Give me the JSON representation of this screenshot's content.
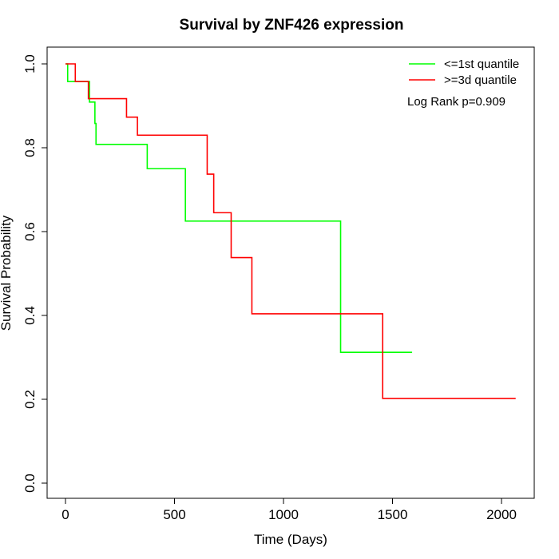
{
  "chart_data": {
    "type": "line",
    "title": "Survival by ZNF426 expression",
    "xlabel": "Time (Days)",
    "ylabel": "Survival Probability",
    "xlim": [
      0,
      2070
    ],
    "ylim": [
      0,
      1
    ],
    "x_ticks": [
      0,
      500,
      1000,
      1500,
      2000
    ],
    "y_ticks": [
      0.0,
      0.2,
      0.4,
      0.6,
      0.8,
      1.0
    ],
    "x_tick_labels": [
      "0",
      "500",
      "1000",
      "1500",
      "2000"
    ],
    "y_tick_labels": [
      "0.0",
      "0.2",
      "0.4",
      "0.6",
      "0.8",
      "1.0"
    ],
    "grid": false,
    "legend_position": "top-right",
    "annotation": "Log Rank p=0.909",
    "series": [
      {
        "name": "<=1st quantile",
        "color": "#00ff00",
        "step": true,
        "x": [
          0,
          10,
          105,
          110,
          135,
          140,
          375,
          550,
          1262,
          1590
        ],
        "y": [
          1.0,
          0.958,
          0.958,
          0.909,
          0.858,
          0.808,
          0.75,
          0.625,
          0.312,
          0.312
        ]
      },
      {
        "name": ">=3d quantile",
        "color": "#ff0000",
        "step": true,
        "x": [
          0,
          45,
          105,
          280,
          330,
          650,
          680,
          760,
          855,
          1455,
          2065
        ],
        "y": [
          1.0,
          0.958,
          0.917,
          0.873,
          0.83,
          0.737,
          0.645,
          0.538,
          0.404,
          0.202,
          0.202
        ]
      }
    ]
  }
}
